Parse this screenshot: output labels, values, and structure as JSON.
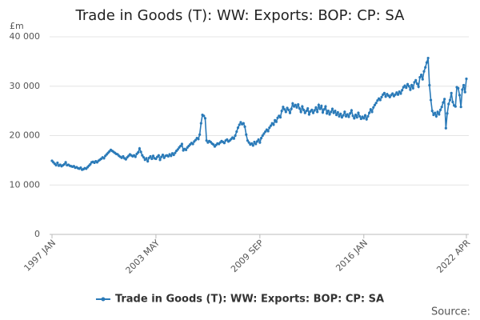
{
  "chart_data": {
    "type": "line",
    "title": "Trade in Goods (T): WW: Exports: BOP: CP: SA",
    "y_label": "£m",
    "source": "Source:",
    "grid": true,
    "ylim": [
      0,
      40000
    ],
    "yticks": [
      0,
      {
        "value": 10000,
        "label": "10 000"
      },
      {
        "value": 20000,
        "label": "20 000"
      },
      {
        "value": 30000,
        "label": "30 000"
      },
      {
        "value": 40000,
        "label": "40 000"
      }
    ],
    "categories": [
      "1997 JAN",
      null,
      null,
      null,
      null,
      null,
      null,
      null,
      null,
      null,
      null,
      null,
      null,
      null,
      null,
      null,
      null,
      null,
      null,
      null,
      null,
      null,
      null,
      null,
      null,
      null,
      null,
      null,
      null,
      null,
      null,
      null,
      null,
      null,
      null,
      null,
      null,
      null,
      null,
      null,
      null,
      null,
      null,
      null,
      null,
      null,
      null,
      null,
      null,
      null,
      null,
      null,
      null,
      null,
      null,
      null,
      null,
      null,
      null,
      null,
      null,
      null,
      null,
      null,
      null,
      null,
      null,
      null,
      null,
      null,
      null,
      null,
      null,
      null,
      null,
      null,
      "2003 MAY",
      null,
      null,
      null,
      null,
      null,
      null,
      null,
      null,
      null,
      null,
      null,
      null,
      null,
      null,
      null,
      null,
      null,
      null,
      null,
      null,
      null,
      null,
      null,
      null,
      null,
      null,
      null,
      null,
      null,
      null,
      null,
      null,
      null,
      null,
      null,
      null,
      null,
      null,
      null,
      null,
      null,
      null,
      null,
      null,
      null,
      null,
      null,
      null,
      null,
      null,
      null,
      null,
      null,
      null,
      null,
      null,
      null,
      null,
      null,
      null,
      null,
      null,
      null,
      null,
      null,
      null,
      null,
      null,
      null,
      null,
      null,
      null,
      null,
      null,
      null,
      "2009 SEP",
      null,
      null,
      null,
      null,
      null,
      null,
      null,
      null,
      null,
      null,
      null,
      null,
      null,
      null,
      null,
      null,
      null,
      null,
      null,
      null,
      null,
      null,
      null,
      null,
      null,
      null,
      null,
      null,
      null,
      null,
      null,
      null,
      null,
      null,
      null,
      null,
      null,
      null,
      null,
      null,
      null,
      null,
      null,
      null,
      null,
      null,
      null,
      null,
      null,
      null,
      null,
      null,
      null,
      null,
      null,
      null,
      null,
      null,
      null,
      null,
      null,
      null,
      null,
      null,
      null,
      null,
      null,
      null,
      null,
      null,
      null,
      null,
      null,
      null,
      null,
      "2016 JAN",
      null,
      null,
      null,
      null,
      null,
      null,
      null,
      null,
      null,
      null,
      null,
      null,
      null,
      null,
      null,
      null,
      null,
      null,
      null,
      null,
      null,
      null,
      null,
      null,
      null,
      null,
      null,
      null,
      null,
      null,
      null,
      null,
      null,
      null,
      null,
      null,
      null,
      null,
      null,
      null,
      null,
      null,
      null,
      null,
      null,
      null,
      null,
      null,
      null,
      null,
      null,
      null,
      null,
      null,
      null,
      null,
      null,
      null,
      null,
      null,
      null,
      null,
      null,
      null,
      null,
      null,
      null,
      null,
      null,
      null,
      null,
      null,
      null,
      null,
      "2022 APR"
    ],
    "series": [
      {
        "name": "Trade in Goods (T): WW: Exports: BOP: CP: SA",
        "color": "#2a7ab8",
        "values": [
          14900,
          14600,
          14300,
          14000,
          14500,
          13900,
          14100,
          13800,
          14000,
          14200,
          14600,
          14000,
          14100,
          13900,
          13800,
          13700,
          13800,
          13500,
          13600,
          13400,
          13300,
          13500,
          13100,
          13200,
          13400,
          13300,
          13600,
          13900,
          14200,
          14600,
          14700,
          14500,
          14800,
          14600,
          14900,
          15100,
          15300,
          15600,
          15400,
          15900,
          16200,
          16500,
          16800,
          17100,
          16900,
          16700,
          16500,
          16300,
          16200,
          15900,
          15700,
          15500,
          15800,
          15400,
          15200,
          15600,
          15900,
          16200,
          16000,
          15800,
          16000,
          15700,
          16300,
          16600,
          17400,
          16700,
          16000,
          15600,
          15100,
          15400,
          14800,
          15500,
          15800,
          15300,
          15900,
          15400,
          15300,
          15700,
          16000,
          15100,
          15700,
          16100,
          15500,
          15900,
          16000,
          15800,
          16200,
          15900,
          16400,
          16100,
          16500,
          16900,
          17200,
          17600,
          17900,
          18300,
          17000,
          17300,
          17100,
          17600,
          17900,
          18200,
          18500,
          18300,
          18800,
          19100,
          19500,
          19300,
          20200,
          22500,
          24200,
          24000,
          23500,
          19000,
          18600,
          18900,
          18700,
          18400,
          18200,
          17800,
          18100,
          18400,
          18300,
          18600,
          18900,
          18700,
          18500,
          19000,
          19200,
          18800,
          19000,
          19300,
          19600,
          19400,
          20000,
          20800,
          21600,
          22200,
          22700,
          22300,
          22500,
          21800,
          20200,
          19000,
          18600,
          18200,
          18400,
          18000,
          18700,
          18300,
          18800,
          19200,
          18600,
          19500,
          20000,
          20400,
          20800,
          21200,
          20900,
          21600,
          22000,
          22500,
          22200,
          23100,
          22800,
          23600,
          24000,
          23700,
          25000,
          25800,
          25300,
          24800,
          25600,
          25200,
          24600,
          25400,
          26500,
          25900,
          26200,
          25700,
          26300,
          25500,
          24800,
          25900,
          25200,
          24600,
          25000,
          25500,
          24300,
          24900,
          25200,
          24600,
          25100,
          25700,
          24800,
          26200,
          25400,
          26000,
          24700,
          25300,
          25900,
          24500,
          25000,
          24300,
          24800,
          25400,
          24600,
          25000,
          24200,
          24700,
          23900,
          24400,
          23700,
          24100,
          24800,
          23900,
          24300,
          23800,
          24500,
          25100,
          24000,
          23500,
          24200,
          23700,
          24600,
          23900,
          23400,
          23800,
          23500,
          24100,
          23300,
          23900,
          24600,
          25300,
          24800,
          25700,
          26200,
          26600,
          27100,
          27500,
          27200,
          27800,
          28300,
          28600,
          27900,
          28400,
          28100,
          27800,
          28200,
          28500,
          28000,
          28300,
          28700,
          28300,
          28900,
          28500,
          29200,
          29800,
          30100,
          29700,
          30400,
          30000,
          29300,
          30200,
          29600,
          30800,
          31200,
          30500,
          29900,
          31800,
          32300,
          31400,
          33000,
          33800,
          34800,
          35700,
          30200,
          27200,
          25000,
          24200,
          24600,
          23900,
          24800,
          24300,
          25200,
          25800,
          26700,
          27400,
          21500,
          24500,
          26400,
          27200,
          28600,
          26800,
          26100,
          25900,
          29800,
          29600,
          28200,
          25800,
          29300,
          30200,
          28800,
          31500
        ]
      }
    ]
  }
}
